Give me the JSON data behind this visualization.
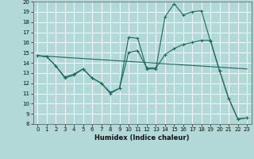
{
  "xlabel": "Humidex (Indice chaleur)",
  "background_color": "#b2d8d8",
  "grid_color": "#ffffff",
  "line_color": "#1a6b5a",
  "xlim": [
    -0.5,
    23.5
  ],
  "ylim": [
    8,
    20
  ],
  "xticks": [
    0,
    1,
    2,
    3,
    4,
    5,
    6,
    7,
    8,
    9,
    10,
    11,
    12,
    13,
    14,
    15,
    16,
    17,
    18,
    19,
    20,
    21,
    22,
    23
  ],
  "yticks": [
    8,
    9,
    10,
    11,
    12,
    13,
    14,
    15,
    16,
    17,
    18,
    19,
    20
  ],
  "series1_x": [
    0,
    1,
    2,
    3,
    4,
    5,
    6,
    7,
    8,
    9,
    10,
    11,
    12,
    13,
    14,
    15,
    16,
    17,
    18,
    19,
    20,
    21,
    22,
    23
  ],
  "series1_y": [
    14.7,
    14.6,
    13.7,
    12.5,
    12.8,
    13.4,
    12.5,
    12.0,
    11.0,
    11.5,
    16.5,
    16.4,
    13.4,
    13.4,
    18.5,
    19.8,
    18.7,
    19.0,
    19.1,
    16.1,
    13.2,
    10.5,
    8.5,
    8.6
  ],
  "series2_x": [
    0,
    1,
    2,
    3,
    4,
    5,
    6,
    7,
    8,
    9,
    10,
    11,
    12,
    13,
    14,
    15,
    16,
    17,
    18,
    19,
    20,
    21,
    22,
    23
  ],
  "series2_y": [
    14.7,
    14.6,
    13.7,
    12.6,
    12.9,
    13.4,
    12.5,
    12.0,
    11.1,
    11.5,
    15.0,
    15.2,
    13.5,
    13.5,
    14.8,
    15.4,
    15.8,
    16.0,
    16.2,
    16.2,
    13.2,
    10.5,
    8.5,
    8.6
  ],
  "series3_x": [
    0,
    23
  ],
  "series3_y": [
    14.7,
    13.4
  ],
  "xlabel_fontsize": 6.0,
  "tick_fontsize": 5.0
}
